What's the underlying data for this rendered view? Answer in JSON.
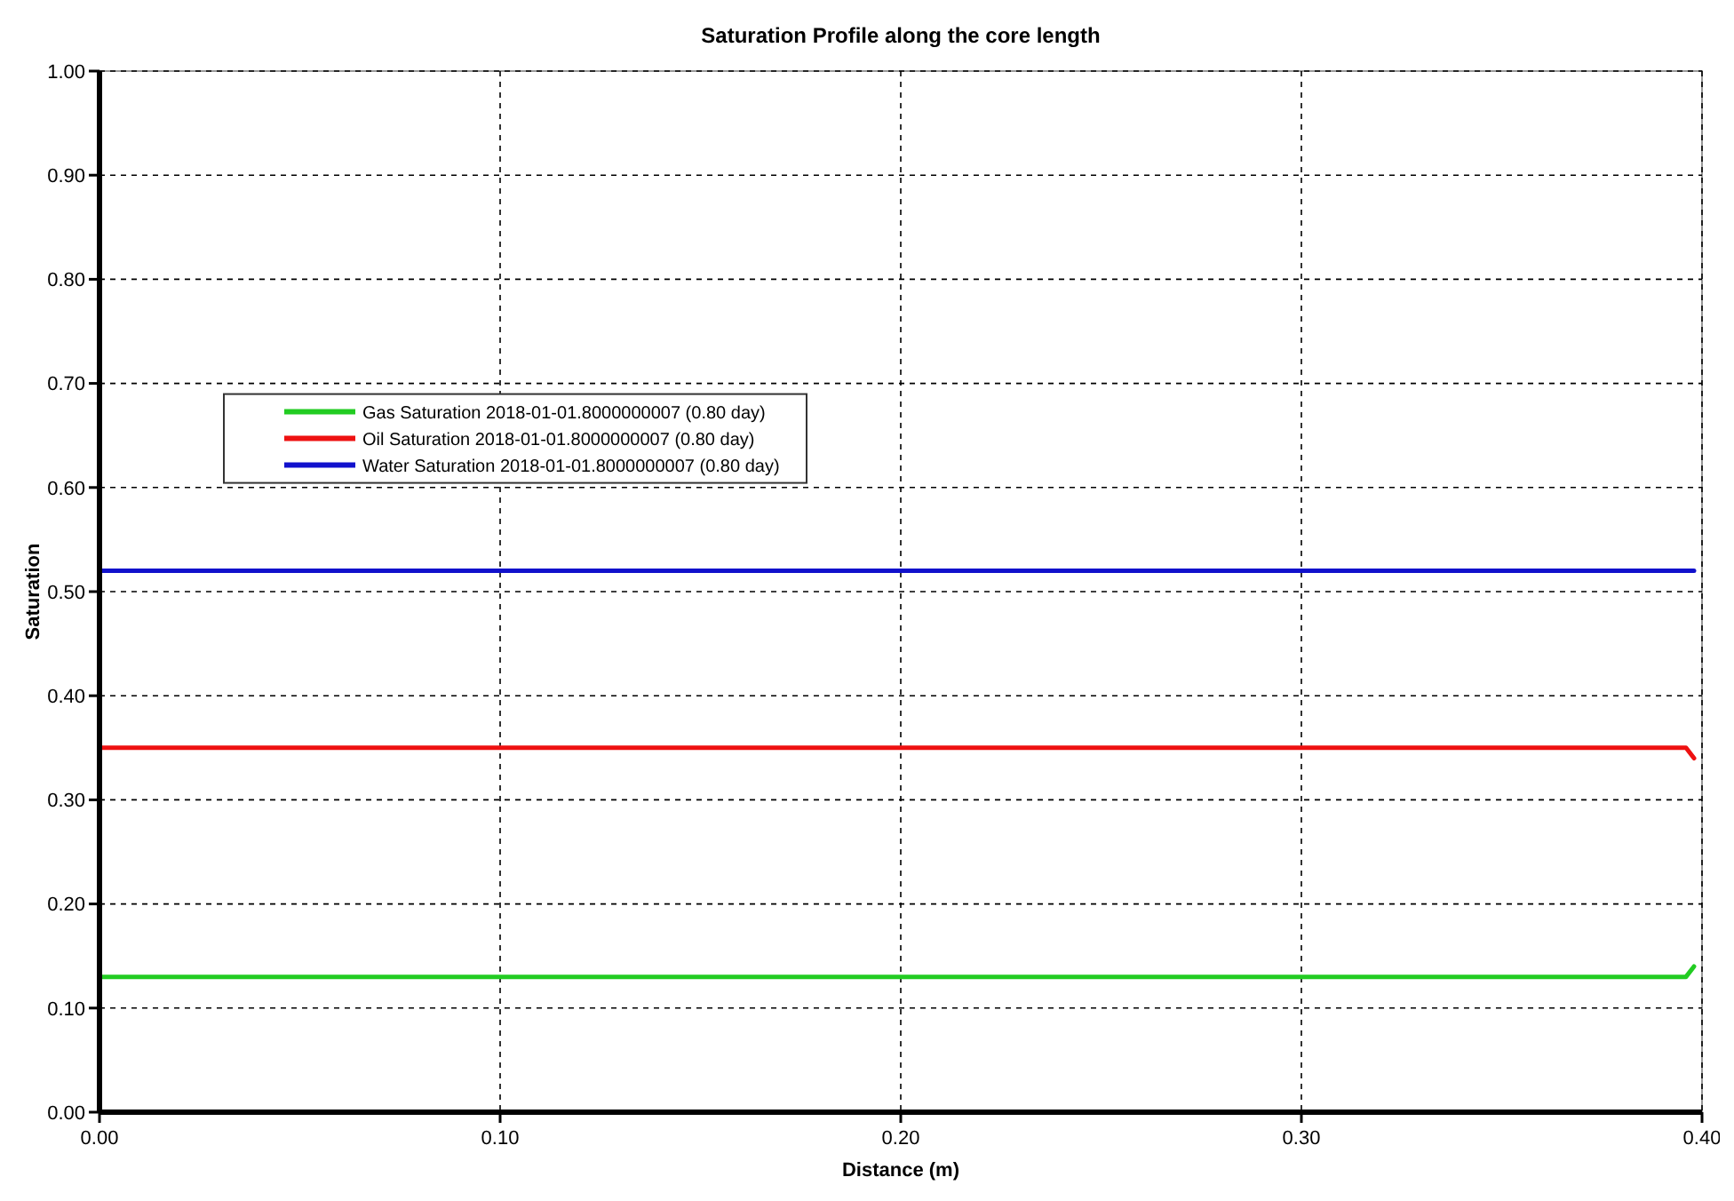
{
  "chart_data": {
    "type": "line",
    "title": "Saturation Profile along the core length",
    "xlabel": "Distance (m)",
    "ylabel": "Saturation",
    "xlim": [
      0,
      0.4
    ],
    "ylim": [
      0,
      1
    ],
    "xticks": [
      {
        "value": 0,
        "label": "0.00"
      },
      {
        "value": 0.1,
        "label": "0.10"
      },
      {
        "value": 0.2,
        "label": "0.20"
      },
      {
        "value": 0.3,
        "label": "0.30"
      },
      {
        "value": 0.4,
        "label": "0.40"
      }
    ],
    "yticks": [
      {
        "value": 0,
        "label": "0.00"
      },
      {
        "value": 0.1,
        "label": "0.10"
      },
      {
        "value": 0.2,
        "label": "0.20"
      },
      {
        "value": 0.3,
        "label": "0.30"
      },
      {
        "value": 0.4,
        "label": "0.40"
      },
      {
        "value": 0.5,
        "label": "0.50"
      },
      {
        "value": 0.6,
        "label": "0.60"
      },
      {
        "value": 0.7,
        "label": "0.70"
      },
      {
        "value": 0.8,
        "label": "0.80"
      },
      {
        "value": 0.9,
        "label": "0.90"
      },
      {
        "value": 1,
        "label": "1.00"
      }
    ],
    "x": [
      0,
      0.05,
      0.1,
      0.15,
      0.2,
      0.25,
      0.3,
      0.35,
      0.396,
      0.398
    ],
    "grid": true,
    "legend": "top left",
    "marker": "none",
    "line_style": "solid",
    "series": [
      {
        "name": "Gas Saturation 2018-01-01.8000000007 (0.80 day)",
        "color": "#22cc22",
        "values": [
          0.13,
          0.13,
          0.13,
          0.13,
          0.13,
          0.13,
          0.13,
          0.13,
          0.13,
          0.14
        ]
      },
      {
        "name": "Oil Saturation 2018-01-01.8000000007 (0.80 day)",
        "color": "#ee1111",
        "values": [
          0.35,
          0.35,
          0.35,
          0.35,
          0.35,
          0.35,
          0.35,
          0.35,
          0.35,
          0.34
        ]
      },
      {
        "name": "Water Saturation 2018-01-01.8000000007 (0.80 day)",
        "color": "#1111cc",
        "values": [
          0.52,
          0.52,
          0.52,
          0.52,
          0.52,
          0.52,
          0.52,
          0.52,
          0.52,
          0.52
        ]
      }
    ]
  }
}
